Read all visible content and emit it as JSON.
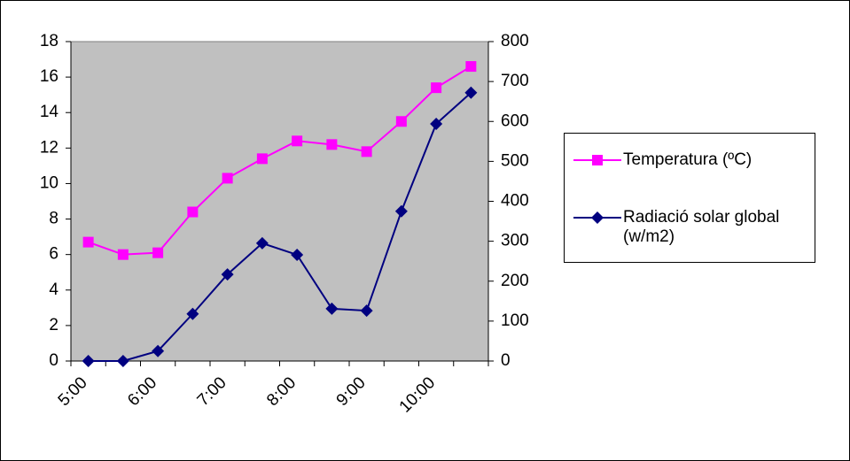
{
  "chart_data": {
    "type": "line",
    "categories": [
      "5:00",
      null,
      "6:00",
      null,
      "7:00",
      null,
      "8:00",
      null,
      "9:00",
      null,
      "10:00",
      null
    ],
    "ylim": [
      0,
      18
    ],
    "yticks": [
      0,
      2,
      4,
      6,
      8,
      10,
      12,
      14,
      16,
      18
    ],
    "y2lim": [
      0,
      800
    ],
    "y2ticks": [
      0,
      100,
      200,
      300,
      400,
      500,
      600,
      700,
      800
    ],
    "plot_background": "#c0c0c0",
    "series": [
      {
        "name": "Temperatura (ºC)",
        "color": "#ff00ff",
        "marker": "square",
        "values": [
          6.7,
          6.0,
          6.1,
          8.4,
          10.3,
          11.4,
          12.4,
          12.2,
          11.8,
          13.5,
          15.4,
          16.6
        ]
      },
      {
        "name": "Radiació solar global (w/m2)",
        "color": "#000080",
        "marker": "diamond",
        "axis": "y2",
        "values": [
          0,
          0,
          25,
          118,
          217,
          295,
          266,
          131,
          126,
          375,
          594,
          672
        ]
      }
    ]
  }
}
